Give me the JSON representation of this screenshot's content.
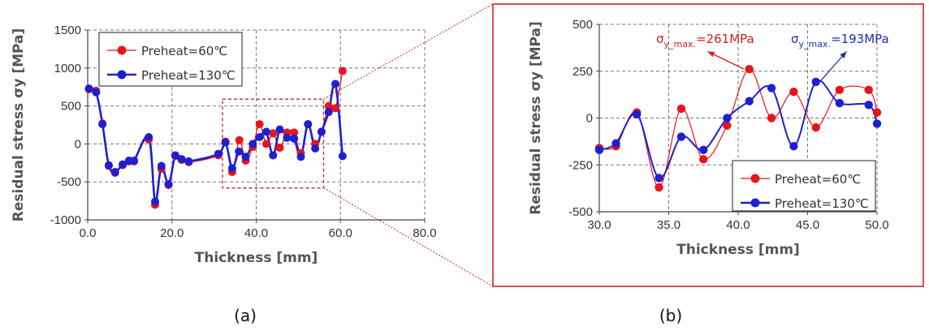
{
  "chart_data": [
    {
      "type": "line",
      "panel_label": "(a)",
      "xlabel": "Thickness [mm]",
      "ylabel": "Residual stress σy [MPa]",
      "xlim": [
        0,
        80
      ],
      "ylim": [
        -1000,
        1500
      ],
      "x_ticks": [
        "0.0",
        "20.0",
        "40.0",
        "60.0",
        "80.0"
      ],
      "y_ticks": [
        "-1000",
        "-500",
        "0",
        "500",
        "1000",
        "1500"
      ],
      "grid": true,
      "legend": "top-left",
      "highlight_box": {
        "x": [
          32,
          56
        ],
        "y": [
          -580,
          590
        ]
      },
      "series": [
        {
          "name": "Preheat=60℃",
          "color": "#e8141b",
          "marker": "circle",
          "x": [
            0.3,
            2.0,
            3.5,
            5.0,
            6.5,
            8.3,
            9.8,
            11.0,
            14.5,
            16.0,
            17.5,
            19.2,
            20.8,
            22.3,
            24.0,
            31.0,
            32.7,
            34.3,
            36.0,
            37.5,
            39.2,
            40.8,
            42.4,
            44.0,
            45.6,
            47.3,
            49.0,
            50.6,
            52.3,
            54.0,
            55.5,
            57.2,
            58.8,
            60.5
          ],
          "y": [
            720,
            700,
            270,
            -290,
            -380,
            -280,
            -230,
            -230,
            60,
            -800,
            -330,
            -540,
            -160,
            -210,
            -240,
            -150,
            30,
            -370,
            50,
            -220,
            -40,
            260,
            0,
            140,
            -50,
            150,
            150,
            -120,
            260,
            0,
            160,
            500,
            470,
            960
          ]
        },
        {
          "name": "Preheat=130℃",
          "color": "#1f1fd0",
          "marker": "circle",
          "x": [
            0.3,
            2.0,
            3.5,
            5.0,
            6.5,
            8.3,
            9.8,
            11.0,
            14.5,
            16.0,
            17.5,
            19.2,
            20.8,
            22.3,
            24.0,
            31.0,
            32.7,
            34.3,
            35.9,
            37.5,
            39.2,
            40.8,
            42.4,
            44.0,
            45.6,
            47.3,
            49.0,
            50.6,
            52.3,
            54.0,
            55.5,
            57.2,
            58.8,
            60.5
          ],
          "y": [
            730,
            680,
            260,
            -280,
            -370,
            -270,
            -220,
            -220,
            90,
            -760,
            -290,
            -530,
            -150,
            -200,
            -230,
            -130,
            20,
            -320,
            -100,
            -170,
            0,
            90,
            160,
            -150,
            190,
            80,
            70,
            -170,
            260,
            -60,
            160,
            420,
            790,
            -160
          ]
        }
      ]
    },
    {
      "type": "line",
      "panel_label": "(b)",
      "xlabel": "Thickness [mm]",
      "ylabel": "Residual stress σy [MPa]",
      "xlim": [
        30,
        50
      ],
      "ylim": [
        -500,
        500
      ],
      "x_ticks": [
        "30.0",
        "35.0",
        "40.0",
        "45.0",
        "50.0"
      ],
      "y_ticks": [
        "-500",
        "-250",
        "0",
        "250",
        "500"
      ],
      "grid": true,
      "legend": "bottom-right",
      "annotations": [
        {
          "prefix": "σ",
          "sub": "y_max.",
          "value": "=261MPa",
          "color": "#d12020",
          "series": 0,
          "arrow_from": [
            40.4,
            262
          ],
          "arrow_to": [
            37.8,
            355
          ]
        },
        {
          "prefix": "σ",
          "sub": "y_max.",
          "value": "=193MPa",
          "color": "#2030b0",
          "series": 1,
          "arrow_from": [
            45.9,
            195
          ],
          "arrow_to": [
            47.8,
            355
          ]
        }
      ],
      "series": [
        {
          "name": "Preheat=60℃",
          "color": "#e8141b",
          "marker": "circle",
          "x": [
            30.0,
            31.2,
            32.7,
            34.3,
            35.9,
            37.5,
            39.2,
            40.8,
            42.4,
            44.0,
            45.6,
            47.3,
            49.4,
            50.0
          ],
          "y": [
            -160,
            -150,
            30,
            -370,
            50,
            -220,
            -40,
            261,
            0,
            140,
            -50,
            150,
            150,
            30
          ]
        },
        {
          "name": "Preheat=130℃",
          "color": "#1f1fd0",
          "marker": "circle",
          "x": [
            30.0,
            31.2,
            32.7,
            34.3,
            35.9,
            37.5,
            39.2,
            40.8,
            42.4,
            44.0,
            45.6,
            47.3,
            49.4,
            50.0
          ],
          "y": [
            -170,
            -135,
            20,
            -320,
            -100,
            -170,
            0,
            90,
            160,
            -150,
            193,
            80,
            70,
            -30
          ]
        }
      ]
    }
  ]
}
